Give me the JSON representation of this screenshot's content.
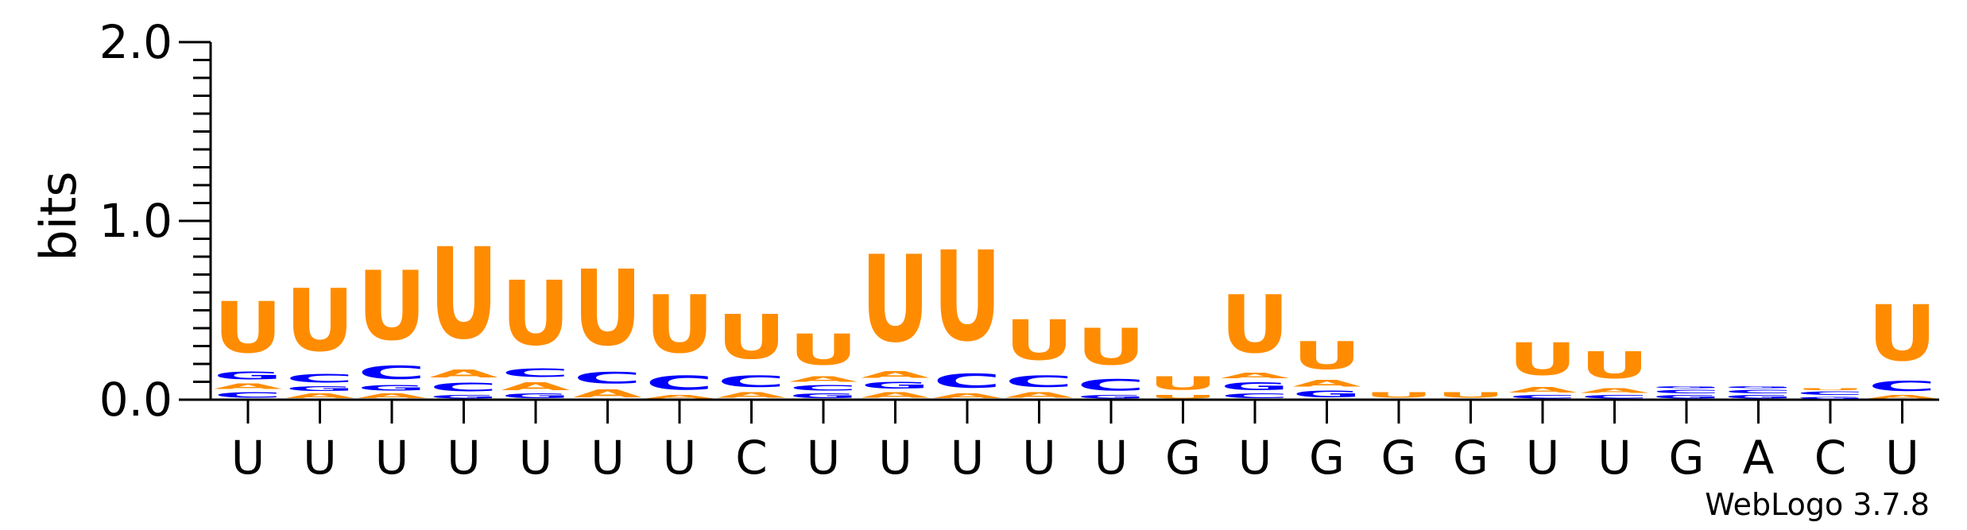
{
  "chart_data": {
    "type": "sequence_logo",
    "ylabel": "bits",
    "ylim": [
      0,
      2
    ],
    "yticks": [
      "0.0",
      "1.0",
      "2.0"
    ],
    "credit": "WebLogo 3.7.8",
    "colors": {
      "U": "#ff8c00",
      "A": "#ff8c00",
      "C": "#0000ff",
      "G": "#0000ff"
    },
    "positions": [
      "U",
      "U",
      "U",
      "U",
      "U",
      "U",
      "U",
      "C",
      "U",
      "U",
      "U",
      "U",
      "U",
      "G",
      "U",
      "G",
      "G",
      "G",
      "U",
      "U",
      "G",
      "A",
      "C",
      "U"
    ],
    "stacks": [
      [
        {
          "l": "C",
          "v": 0.05
        },
        {
          "l": "A",
          "v": 0.05
        },
        {
          "l": "G",
          "v": 0.07
        },
        {
          "l": "U",
          "v": 0.46
        }
      ],
      [
        {
          "l": "A",
          "v": 0.04
        },
        {
          "l": "G",
          "v": 0.04
        },
        {
          "l": "C",
          "v": 0.08
        },
        {
          "l": "U",
          "v": 0.56
        }
      ],
      [
        {
          "l": "A",
          "v": 0.04
        },
        {
          "l": "G",
          "v": 0.05
        },
        {
          "l": "C",
          "v": 0.12
        },
        {
          "l": "U",
          "v": 0.62
        }
      ],
      [
        {
          "l": "G",
          "v": 0.03
        },
        {
          "l": "C",
          "v": 0.08
        },
        {
          "l": "A",
          "v": 0.07
        },
        {
          "l": "U",
          "v": 0.82
        }
      ],
      [
        {
          "l": "G",
          "v": 0.04
        },
        {
          "l": "A",
          "v": 0.07
        },
        {
          "l": "C",
          "v": 0.08
        },
        {
          "l": "U",
          "v": 0.58
        }
      ],
      [
        {
          "l": "A",
          "v": 0.07
        },
        {
          "l": "C",
          "v": 0.1
        },
        {
          "l": "U",
          "v": 0.68
        }
      ],
      [
        {
          "l": "A",
          "v": 0.03
        },
        {
          "l": "C",
          "v": 0.13
        },
        {
          "l": "U",
          "v": 0.52
        }
      ],
      [
        {
          "l": "A",
          "v": 0.05
        },
        {
          "l": "C",
          "v": 0.1
        },
        {
          "l": "U",
          "v": 0.4
        }
      ],
      [
        {
          "l": "G",
          "v": 0.04
        },
        {
          "l": "C",
          "v": 0.05
        },
        {
          "l": "A",
          "v": 0.05
        },
        {
          "l": "U",
          "v": 0.28
        }
      ],
      [
        {
          "l": "A",
          "v": 0.05
        },
        {
          "l": "G",
          "v": 0.06
        },
        {
          "l": "A",
          "v": 0.06
        },
        {
          "l": "U",
          "v": 0.78
        }
      ],
      [
        {
          "l": "A",
          "v": 0.04
        },
        {
          "l": "C",
          "v": 0.13
        },
        {
          "l": "U",
          "v": 0.81
        }
      ],
      [
        {
          "l": "A",
          "v": 0.05
        },
        {
          "l": "C",
          "v": 0.1
        },
        {
          "l": "U",
          "v": 0.36
        }
      ],
      [
        {
          "l": "G",
          "v": 0.03
        },
        {
          "l": "C",
          "v": 0.1
        },
        {
          "l": "U",
          "v": 0.33
        }
      ],
      [
        {
          "l": "U",
          "v": 0.03
        },
        {
          "l": "U",
          "v": 0.12
        }
      ],
      [
        {
          "l": "C",
          "v": 0.04
        },
        {
          "l": "G",
          "v": 0.07
        },
        {
          "l": "A",
          "v": 0.05
        },
        {
          "l": "U",
          "v": 0.52
        }
      ],
      [
        {
          "l": "G",
          "v": 0.06
        },
        {
          "l": "A",
          "v": 0.06
        },
        {
          "l": "U",
          "v": 0.25
        }
      ],
      [
        {
          "l": "U",
          "v": 0.05
        }
      ],
      [
        {
          "l": "U",
          "v": 0.05
        }
      ],
      [
        {
          "l": "C",
          "v": 0.03
        },
        {
          "l": "A",
          "v": 0.05
        },
        {
          "l": "U",
          "v": 0.29
        }
      ],
      [
        {
          "l": "C",
          "v": 0.03
        },
        {
          "l": "A",
          "v": 0.04
        },
        {
          "l": "U",
          "v": 0.24
        }
      ],
      [
        {
          "l": "G",
          "v": 0.03
        },
        {
          "l": "C",
          "v": 0.03
        },
        {
          "l": "G",
          "v": 0.02
        }
      ],
      [
        {
          "l": "G",
          "v": 0.03
        },
        {
          "l": "C",
          "v": 0.03
        },
        {
          "l": "G",
          "v": 0.02
        }
      ],
      [
        {
          "l": "G",
          "v": 0.02
        },
        {
          "l": "C",
          "v": 0.03
        },
        {
          "l": "U",
          "v": 0.02
        }
      ],
      [
        {
          "l": "A",
          "v": 0.03
        },
        {
          "l": "C",
          "v": 0.09
        },
        {
          "l": "U",
          "v": 0.5
        }
      ]
    ]
  }
}
